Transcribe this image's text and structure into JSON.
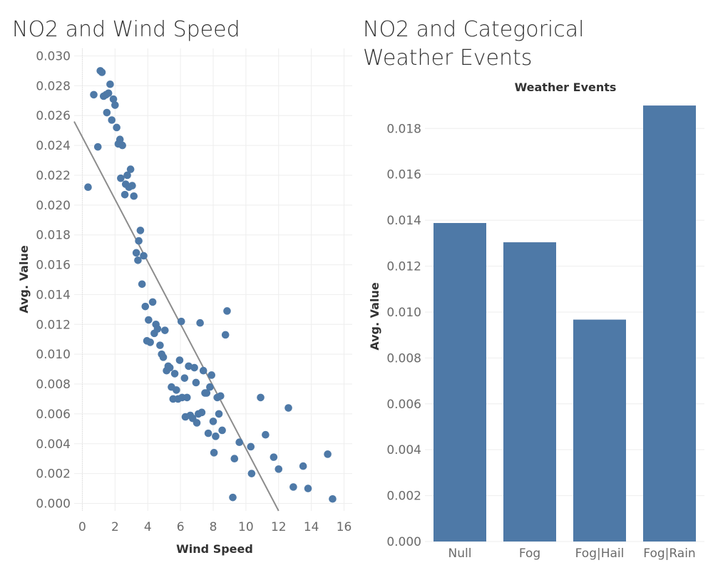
{
  "colors": {
    "mark": "#4e79a7",
    "trend": "#8c8c8c",
    "grid": "#eeeeee"
  },
  "chart_data": [
    {
      "type": "scatter",
      "title": "NO2 and Wind Speed",
      "xlabel": "Wind Speed",
      "ylabel": "Avg. Value",
      "xlim": [
        -0.5,
        16.5
      ],
      "ylim": [
        -0.0005,
        0.0305
      ],
      "xticks": [
        "0",
        "2",
        "4",
        "6",
        "8",
        "10",
        "12",
        "14",
        "16"
      ],
      "yticks": [
        "0.030",
        "0.028",
        "0.026",
        "0.024",
        "0.022",
        "0.020",
        "0.018",
        "0.016",
        "0.014",
        "0.012",
        "0.010",
        "0.008",
        "0.006",
        "0.004",
        "0.002",
        "0.000"
      ],
      "trend_line": {
        "x": [
          -0.5,
          12.0
        ],
        "y": [
          0.0256,
          -0.0005
        ]
      },
      "points": [
        [
          0.35,
          0.0212
        ],
        [
          0.7,
          0.0274
        ],
        [
          0.95,
          0.0239
        ],
        [
          1.1,
          0.029
        ],
        [
          1.2,
          0.0289
        ],
        [
          1.3,
          0.0273
        ],
        [
          1.45,
          0.0274
        ],
        [
          1.5,
          0.0262
        ],
        [
          1.6,
          0.0275
        ],
        [
          1.7,
          0.0281
        ],
        [
          1.8,
          0.0257
        ],
        [
          1.9,
          0.0271
        ],
        [
          2.0,
          0.0267
        ],
        [
          2.1,
          0.0252
        ],
        [
          2.2,
          0.0241
        ],
        [
          2.3,
          0.0244
        ],
        [
          2.35,
          0.0218
        ],
        [
          2.45,
          0.024
        ],
        [
          2.6,
          0.0207
        ],
        [
          2.65,
          0.0214
        ],
        [
          2.75,
          0.022
        ],
        [
          2.85,
          0.0212
        ],
        [
          2.95,
          0.0224
        ],
        [
          3.05,
          0.0213
        ],
        [
          3.15,
          0.0206
        ],
        [
          3.3,
          0.0168
        ],
        [
          3.4,
          0.0163
        ],
        [
          3.45,
          0.0176
        ],
        [
          3.55,
          0.0183
        ],
        [
          3.65,
          0.0147
        ],
        [
          3.75,
          0.0166
        ],
        [
          3.85,
          0.0132
        ],
        [
          3.95,
          0.0109
        ],
        [
          4.05,
          0.0123
        ],
        [
          4.15,
          0.0108
        ],
        [
          4.3,
          0.0135
        ],
        [
          4.4,
          0.0114
        ],
        [
          4.5,
          0.012
        ],
        [
          4.6,
          0.0117
        ],
        [
          4.75,
          0.0106
        ],
        [
          4.85,
          0.01
        ],
        [
          4.95,
          0.0098
        ],
        [
          5.05,
          0.0116
        ],
        [
          5.15,
          0.0089
        ],
        [
          5.25,
          0.0092
        ],
        [
          5.35,
          0.0091
        ],
        [
          5.45,
          0.0078
        ],
        [
          5.55,
          0.007
        ],
        [
          5.65,
          0.0087
        ],
        [
          5.75,
          0.0076
        ],
        [
          5.85,
          0.007
        ],
        [
          5.95,
          0.0096
        ],
        [
          6.05,
          0.0122
        ],
        [
          6.1,
          0.0071
        ],
        [
          6.25,
          0.0084
        ],
        [
          6.3,
          0.0058
        ],
        [
          6.4,
          0.0071
        ],
        [
          6.5,
          0.0092
        ],
        [
          6.6,
          0.0059
        ],
        [
          6.75,
          0.0057
        ],
        [
          6.85,
          0.0091
        ],
        [
          6.95,
          0.0081
        ],
        [
          7.0,
          0.0054
        ],
        [
          7.1,
          0.006
        ],
        [
          7.2,
          0.0121
        ],
        [
          7.3,
          0.0061
        ],
        [
          7.4,
          0.0089
        ],
        [
          7.5,
          0.0074
        ],
        [
          7.6,
          0.0074
        ],
        [
          7.7,
          0.0047
        ],
        [
          7.8,
          0.0078
        ],
        [
          7.9,
          0.0086
        ],
        [
          8.0,
          0.0055
        ],
        [
          8.05,
          0.0034
        ],
        [
          8.15,
          0.0045
        ],
        [
          8.25,
          0.0071
        ],
        [
          8.35,
          0.006
        ],
        [
          8.45,
          0.0072
        ],
        [
          8.55,
          0.0049
        ],
        [
          8.75,
          0.0113
        ],
        [
          8.85,
          0.0129
        ],
        [
          9.2,
          0.0004
        ],
        [
          9.3,
          0.003
        ],
        [
          9.6,
          0.0041
        ],
        [
          10.3,
          0.0038
        ],
        [
          10.35,
          0.002
        ],
        [
          10.9,
          0.0071
        ],
        [
          11.2,
          0.0046
        ],
        [
          11.7,
          0.0031
        ],
        [
          12.0,
          0.0023
        ],
        [
          12.6,
          0.0064
        ],
        [
          12.9,
          0.0011
        ],
        [
          13.5,
          0.0025
        ],
        [
          13.8,
          0.001
        ],
        [
          15.0,
          0.0033
        ],
        [
          15.3,
          0.0003
        ]
      ]
    },
    {
      "type": "bar",
      "title": "NO2 and Categorical Weather Events",
      "header": "Weather Events",
      "xlabel": "",
      "ylabel": "Avg. Value",
      "ylim": [
        0,
        0.0195
      ],
      "yticks": [
        "0.018",
        "0.016",
        "0.014",
        "0.012",
        "0.010",
        "0.008",
        "0.006",
        "0.004",
        "0.002",
        "0.000"
      ],
      "categories": [
        "Null",
        "Fog",
        "Fog|Hail",
        "Fog|Rain"
      ],
      "values": [
        0.01388,
        0.01304,
        0.00967,
        0.019
      ]
    }
  ]
}
